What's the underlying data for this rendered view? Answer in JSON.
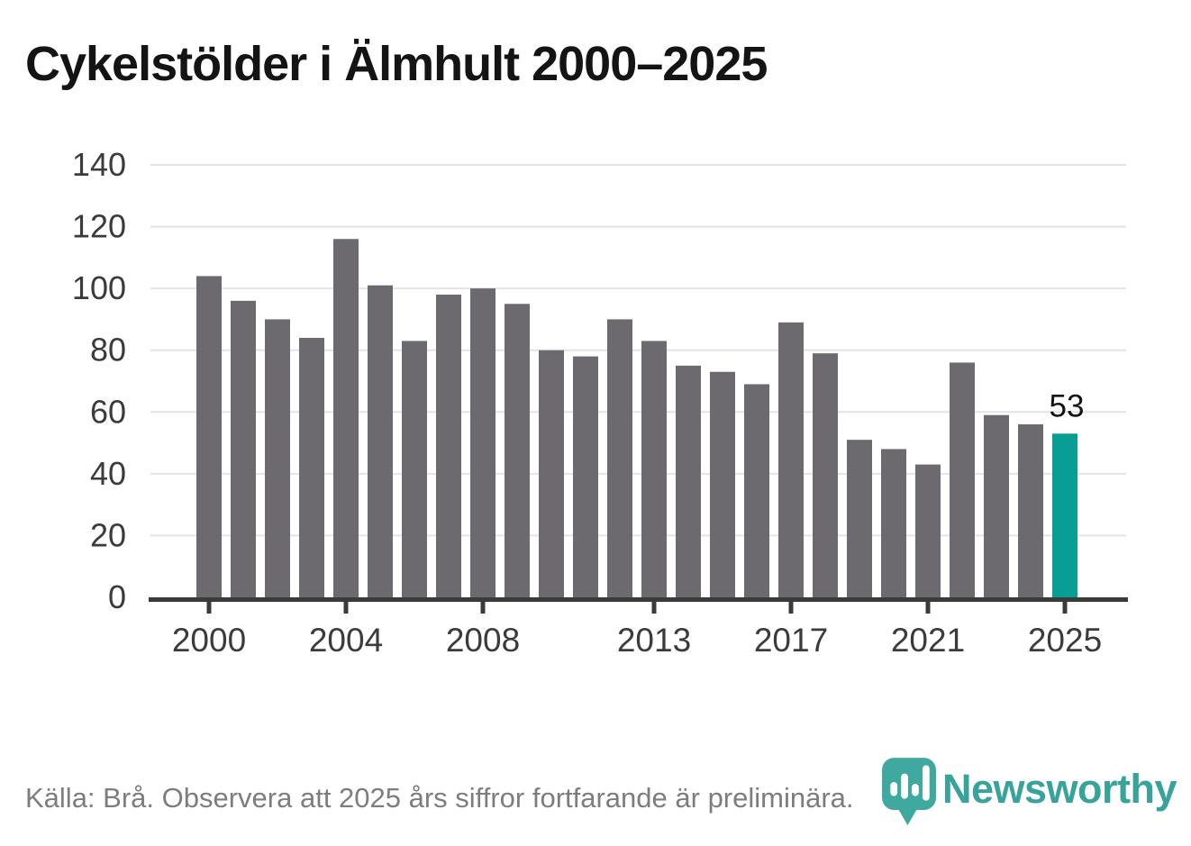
{
  "header": {
    "title": "Cykelstölder i Älmhult 2000–2025"
  },
  "chart_data": {
    "type": "bar",
    "title": "Cykelstölder i Älmhult 2000–2025",
    "categories": [
      "2000",
      "2001",
      "2002",
      "2003",
      "2004",
      "2005",
      "2006",
      "2007",
      "2008",
      "2009",
      "2010",
      "2011",
      "2012",
      "2013",
      "2014",
      "2015",
      "2016",
      "2017",
      "2018",
      "2019",
      "2020",
      "2021",
      "2022",
      "2023",
      "2024",
      "2025"
    ],
    "values": [
      104,
      96,
      90,
      84,
      116,
      101,
      83,
      98,
      100,
      95,
      80,
      78,
      90,
      83,
      75,
      73,
      69,
      89,
      79,
      51,
      48,
      43,
      76,
      59,
      56,
      53
    ],
    "ylim": [
      0,
      140
    ],
    "yticks": [
      0,
      20,
      40,
      60,
      80,
      100,
      120,
      140
    ],
    "xtick_labels": [
      "2000",
      "2004",
      "2008",
      "2013",
      "2017",
      "2021",
      "2025"
    ],
    "grid": true,
    "legend": false,
    "bar_color": "#6d6a6f",
    "highlight_color": "#089e96",
    "highlight_category": "2025",
    "value_label": {
      "category": "2025",
      "text": "53"
    },
    "axis_color": "#3a3a3a",
    "gridline_color": "#e4e4e4",
    "tick_label_color": "#3b3b3b"
  },
  "footer": {
    "source_text": "Källa: Brå. Observera att 2025 års siffror fortfarande är preliminära.",
    "brand_name": "Newsworthy",
    "brand_color": "#38a39b"
  }
}
